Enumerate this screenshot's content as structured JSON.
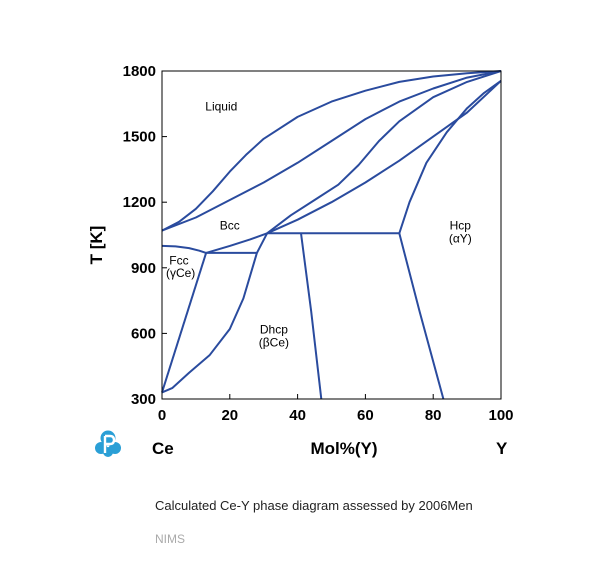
{
  "chart_data": {
    "type": "line",
    "title": "",
    "xlabel": "Mol%(Y)",
    "ylabel": "T [K]",
    "xlim": [
      0,
      100
    ],
    "ylim": [
      300,
      1800
    ],
    "x_ticks": [
      "0",
      "20",
      "40",
      "60",
      "80",
      "100"
    ],
    "y_ticks": [
      "300",
      "600",
      "900",
      "1200",
      "1500",
      "1800"
    ],
    "x_tick_values": [
      0,
      20,
      40,
      60,
      80,
      100
    ],
    "y_tick_values": [
      300,
      600,
      900,
      1200,
      1500,
      1800
    ],
    "left_element": "Ce",
    "right_element": "Y",
    "grid": false,
    "line_color": "#2a4b9e",
    "region_labels": [
      {
        "text": "Liquid",
        "x": 17.5,
        "y": 1620
      },
      {
        "text": "Bcc",
        "x": 20,
        "y": 1075
      },
      {
        "text": "Fcc",
        "x": 5,
        "y": 915
      },
      {
        "text": "(γCe)",
        "x": 5.5,
        "y": 858
      },
      {
        "text": "Dhcp",
        "x": 33,
        "y": 600
      },
      {
        "text": "(βCe)",
        "x": 33,
        "y": 540
      },
      {
        "text": "Hcp",
        "x": 88,
        "y": 1075
      },
      {
        "text": "(αY)",
        "x": 88,
        "y": 1015
      }
    ],
    "series": [
      {
        "points": [
          [
            0,
            1070
          ],
          [
            5,
            1110
          ],
          [
            10,
            1170
          ],
          [
            15,
            1250
          ],
          [
            20,
            1340
          ],
          [
            25,
            1420
          ],
          [
            30,
            1490
          ],
          [
            40,
            1590
          ],
          [
            50,
            1660
          ],
          [
            60,
            1710
          ],
          [
            70,
            1750
          ],
          [
            80,
            1775
          ],
          [
            90,
            1790
          ],
          [
            100,
            1800
          ]
        ]
      },
      {
        "points": [
          [
            0,
            1070
          ],
          [
            10,
            1130
          ],
          [
            20,
            1210
          ],
          [
            30,
            1290
          ],
          [
            40,
            1380
          ],
          [
            50,
            1480
          ],
          [
            60,
            1580
          ],
          [
            70,
            1660
          ],
          [
            80,
            1720
          ],
          [
            90,
            1770
          ],
          [
            100,
            1800
          ]
        ]
      },
      {
        "points": [
          [
            31,
            1058
          ],
          [
            38,
            1140
          ],
          [
            45,
            1210
          ],
          [
            52,
            1280
          ],
          [
            58,
            1370
          ],
          [
            64,
            1480
          ],
          [
            70,
            1570
          ],
          [
            80,
            1680
          ],
          [
            90,
            1750
          ],
          [
            100,
            1800
          ]
        ]
      },
      {
        "points": [
          [
            13,
            968
          ],
          [
            20,
            1000
          ],
          [
            26,
            1030
          ],
          [
            31,
            1058
          ],
          [
            40,
            1120
          ],
          [
            50,
            1200
          ],
          [
            60,
            1290
          ],
          [
            70,
            1390
          ],
          [
            80,
            1500
          ],
          [
            90,
            1610
          ],
          [
            100,
            1755
          ]
        ]
      },
      {
        "points": [
          [
            70,
            1058
          ],
          [
            73,
            1200
          ],
          [
            78,
            1380
          ],
          [
            84,
            1520
          ],
          [
            90,
            1630
          ],
          [
            95,
            1700
          ],
          [
            100,
            1755
          ]
        ]
      },
      {
        "points": [
          [
            0,
            1000
          ],
          [
            4,
            998
          ],
          [
            8,
            990
          ],
          [
            11,
            978
          ],
          [
            13,
            968
          ]
        ]
      },
      {
        "points": [
          [
            13,
            968
          ],
          [
            28,
            968
          ]
        ]
      },
      {
        "points": [
          [
            28,
            968
          ],
          [
            31,
            1058
          ]
        ]
      },
      {
        "points": [
          [
            31,
            1058
          ],
          [
            70,
            1058
          ]
        ]
      },
      {
        "points": [
          [
            0,
            330
          ],
          [
            13,
            968
          ]
        ]
      },
      {
        "points": [
          [
            0,
            330
          ],
          [
            3,
            350
          ],
          [
            8,
            420
          ],
          [
            14,
            500
          ],
          [
            20,
            620
          ],
          [
            24,
            760
          ],
          [
            28,
            968
          ]
        ]
      },
      {
        "points": [
          [
            41,
            1058
          ],
          [
            44,
            700
          ],
          [
            47,
            300
          ]
        ]
      },
      {
        "points": [
          [
            70,
            1058
          ],
          [
            76,
            700
          ],
          [
            83,
            300
          ]
        ]
      }
    ]
  },
  "caption": "Calculated Ce-Y phase diagram assessed by 2006Men",
  "source": "NIMS",
  "logo_icon": "p-logo-icon"
}
